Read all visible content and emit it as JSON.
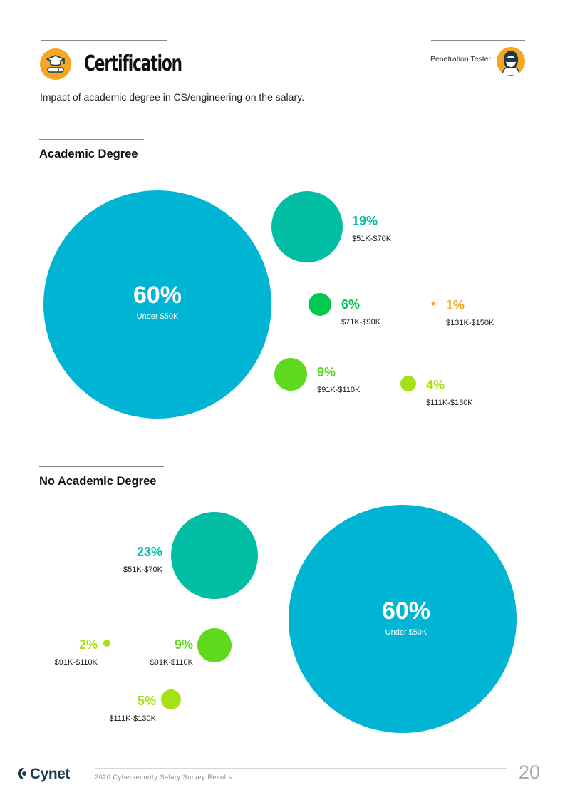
{
  "header": {
    "title": "Certification",
    "subtitle": "Impact of academic degree in CS/engineering on the salary.",
    "role": "Penetration Tester",
    "section_icon": "graduation-diploma-icon",
    "role_icon": "hacker-avatar-icon"
  },
  "colors": {
    "under_50k": "#00b4d3",
    "51k_70k": "#00bda3",
    "71k_90k": "#00c850",
    "91k_110k": "#5ed91e",
    "111k_130k": "#a6e213",
    "131k_150k": "#f6a623",
    "accent_orange": "#f6a623"
  },
  "chart_data": [
    {
      "type": "bubble",
      "title": "Academic Degree",
      "series": [
        {
          "label": "60%",
          "category": "Under $50K",
          "value": 60
        },
        {
          "label": "19%",
          "category": "$51K-$70K",
          "value": 19
        },
        {
          "label": "6%",
          "category": "$71K-$90K",
          "value": 6
        },
        {
          "label": "9%",
          "category": "$91K-$110K",
          "value": 9
        },
        {
          "label": "4%",
          "category": "$111K-$130K",
          "value": 4
        },
        {
          "label": "1%",
          "category": "$131K-$150K",
          "value": 1
        }
      ]
    },
    {
      "type": "bubble",
      "title": "No Academic Degree",
      "series": [
        {
          "label": "60%",
          "category": "Under $50K",
          "value": 60
        },
        {
          "label": "23%",
          "category": "$51K-$70K",
          "value": 23
        },
        {
          "label": "9%",
          "category": "$91K-$110K",
          "value": 9
        },
        {
          "label": "2%",
          "category": "$91K-$110K",
          "value": 2
        },
        {
          "label": "5%",
          "category": "$111K-$130K",
          "value": 5
        }
      ]
    }
  ],
  "footer": {
    "brand": "Cynet",
    "report": "2020 Cybersecurity Salary Survey Results",
    "page": "20"
  }
}
